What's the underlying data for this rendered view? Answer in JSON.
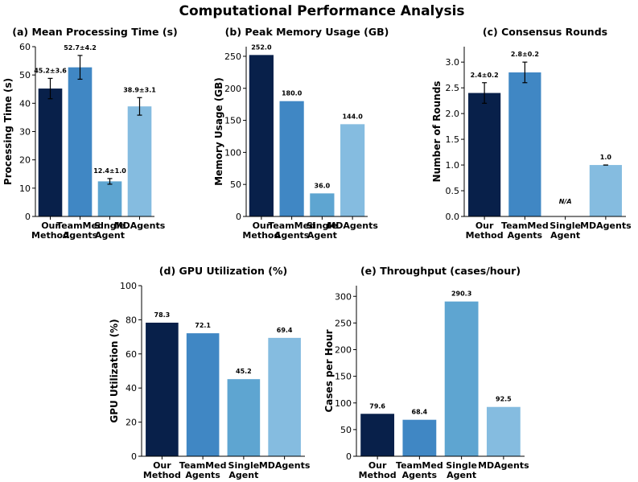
{
  "figure_title": "Computational Performance Analysis",
  "colors": [
    "#08204a",
    "#4087c4",
    "#5ea5d1",
    "#85bce0"
  ],
  "chart_data": [
    {
      "type": "bar",
      "title": "(a) Mean Processing Time (s)",
      "ylabel": "Processing Time (s)",
      "categories": [
        "Our Method",
        "TeamMed Agents",
        "Single Agent",
        "MDAgents"
      ],
      "values": [
        45.2,
        52.7,
        12.4,
        38.9
      ],
      "errors": [
        3.6,
        4.2,
        1.0,
        3.1
      ],
      "data_labels": [
        "45.2±3.6",
        "52.7±4.2",
        "12.4±1.0",
        "38.9±3.1"
      ],
      "ylim": [
        0,
        60
      ],
      "yticks": [
        0,
        10,
        20,
        30,
        40,
        50,
        60
      ],
      "ytick_labels": [
        "0",
        "10",
        "20",
        "30",
        "40",
        "50",
        "60"
      ]
    },
    {
      "type": "bar",
      "title": "(b) Peak Memory Usage (GB)",
      "ylabel": "Memory Usage (GB)",
      "categories": [
        "Our Method",
        "TeamMed Agents",
        "Single Agent",
        "MDAgents"
      ],
      "values": [
        252.0,
        180.0,
        36.0,
        144.0
      ],
      "data_labels": [
        "252.0",
        "180.0",
        "36.0",
        "144.0"
      ],
      "ylim": [
        0,
        265
      ],
      "yticks": [
        0,
        50,
        100,
        150,
        200,
        250
      ],
      "ytick_labels": [
        "0",
        "50",
        "100",
        "150",
        "200",
        "250"
      ]
    },
    {
      "type": "bar",
      "title": "(c) Consensus Rounds",
      "ylabel": "Number of Rounds",
      "categories": [
        "Our Method",
        "TeamMed Agents",
        "Single Agent",
        "MDAgents"
      ],
      "values": [
        2.4,
        2.8,
        null,
        1.0
      ],
      "errors": [
        0.2,
        0.2,
        null,
        0.0
      ],
      "data_labels": [
        "2.4±0.2",
        "2.8±0.2",
        "N/A",
        "1.0"
      ],
      "ylim": [
        0,
        3.3
      ],
      "yticks": [
        0,
        0.5,
        1.0,
        1.5,
        2.0,
        2.5,
        3.0
      ],
      "ytick_labels": [
        "0.0",
        "0.5",
        "1.0",
        "1.5",
        "2.0",
        "2.5",
        "3.0"
      ]
    },
    {
      "type": "bar",
      "title": "(d) GPU Utilization (%)",
      "ylabel": "GPU Utilization (%)",
      "categories": [
        "Our Method",
        "TeamMed Agents",
        "Single Agent",
        "MDAgents"
      ],
      "values": [
        78.3,
        72.1,
        45.2,
        69.4
      ],
      "data_labels": [
        "78.3",
        "72.1",
        "45.2",
        "69.4"
      ],
      "ylim": [
        0,
        100
      ],
      "yticks": [
        0,
        20,
        40,
        60,
        80,
        100
      ],
      "ytick_labels": [
        "0",
        "20",
        "40",
        "60",
        "80",
        "100"
      ]
    },
    {
      "type": "bar",
      "title": "(e) Throughput (cases/hour)",
      "ylabel": "Cases per Hour",
      "categories": [
        "Our Method",
        "TeamMed Agents",
        "Single Agent",
        "MDAgents"
      ],
      "values": [
        79.6,
        68.4,
        290.3,
        92.5
      ],
      "data_labels": [
        "79.6",
        "68.4",
        "290.3",
        "92.5"
      ],
      "ylim": [
        0,
        320
      ],
      "yticks": [
        0,
        50,
        100,
        150,
        200,
        250,
        300
      ],
      "ytick_labels": [
        "0",
        "50",
        "100",
        "150",
        "200",
        "250",
        "300"
      ]
    }
  ]
}
